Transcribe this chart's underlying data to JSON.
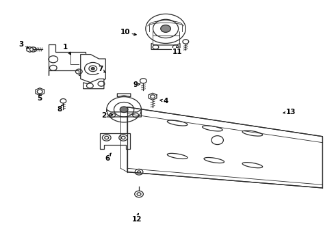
{
  "bg_color": "#ffffff",
  "line_color": "#2a2a2a",
  "text_color": "#000000",
  "fig_width": 4.89,
  "fig_height": 3.6,
  "dpi": 100,
  "callouts": {
    "1": [
      0.195,
      0.81,
      0.215,
      0.77
    ],
    "2": [
      0.31,
      0.53,
      0.345,
      0.535
    ],
    "3": [
      0.062,
      0.82,
      0.093,
      0.8
    ],
    "4": [
      0.495,
      0.59,
      0.47,
      0.595
    ],
    "5": [
      0.118,
      0.6,
      0.118,
      0.62
    ],
    "6": [
      0.32,
      0.355,
      0.335,
      0.385
    ],
    "7": [
      0.3,
      0.72,
      0.315,
      0.705
    ],
    "8": [
      0.178,
      0.555,
      0.19,
      0.578
    ],
    "9": [
      0.405,
      0.655,
      0.42,
      0.66
    ],
    "10": [
      0.373,
      0.87,
      0.415,
      0.858
    ],
    "11": [
      0.53,
      0.79,
      0.528,
      0.815
    ],
    "12": [
      0.408,
      0.108,
      0.415,
      0.14
    ],
    "13": [
      0.87,
      0.545,
      0.84,
      0.54
    ]
  }
}
